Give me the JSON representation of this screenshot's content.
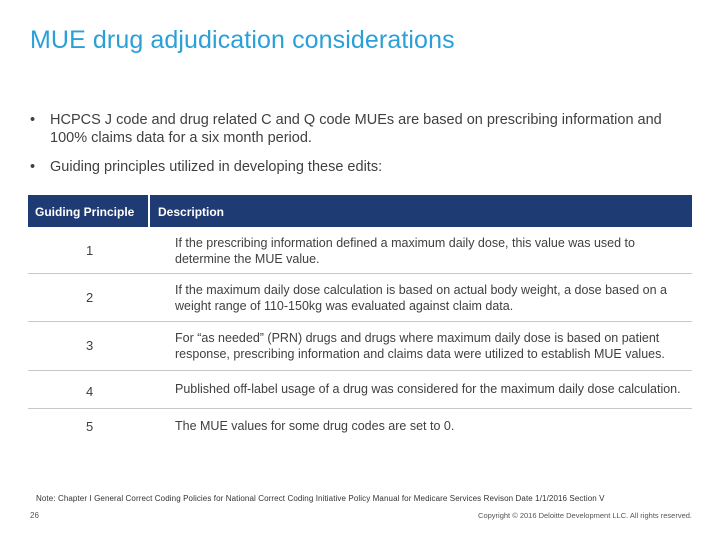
{
  "title": "MUE drug adjudication considerations",
  "bullets": [
    "HCPCS J code and drug related C and Q code MUEs are based on prescribing information and 100% claims data for a six month period.",
    "Guiding principles utilized in developing these edits:"
  ],
  "table": {
    "headers": [
      "Guiding Principle",
      "Description"
    ],
    "rows": [
      {
        "num": "1",
        "desc": "If the prescribing information defined a maximum daily dose, this value was used to determine the MUE value."
      },
      {
        "num": "2",
        "desc": "If the maximum daily dose calculation is based on actual body weight, a dose based on a weight range of 110-150kg was evaluated against claim data."
      },
      {
        "num": "3",
        "desc": "For “as needed” (PRN) drugs and drugs where maximum daily dose is based on patient response, prescribing information and claims data were utilized to establish MUE values."
      },
      {
        "num": "4",
        "desc": "Published off-label usage of a drug was considered for the maximum daily dose calculation."
      },
      {
        "num": "5",
        "desc": "The MUE values for some drug codes are set to 0."
      }
    ]
  },
  "note": "Note: Chapter I General Correct Coding Policies for National Correct Coding Initiative Policy Manual for Medicare Services Revison Date 1/1/2016 Section V",
  "page_number": "26",
  "copyright": "Copyright © 2016 Deloitte Development LLC. All rights reserved."
}
